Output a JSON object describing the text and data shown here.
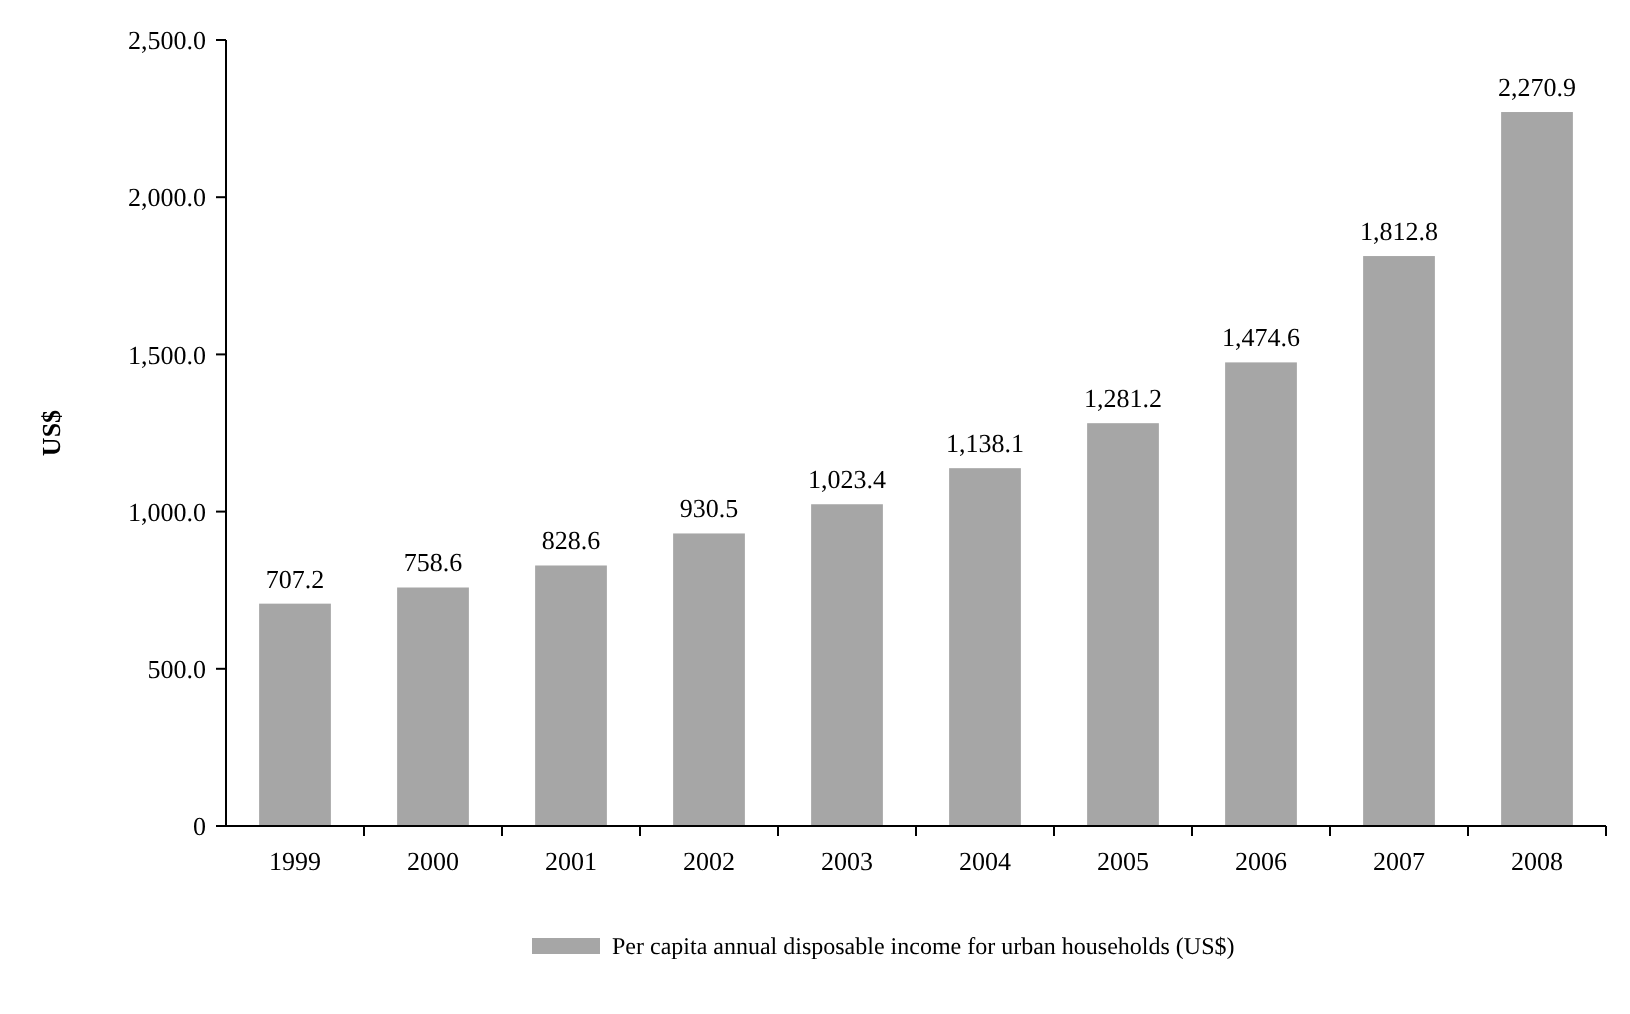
{
  "chart_data": {
    "type": "bar",
    "ylabel": "US$",
    "categories": [
      "1999",
      "2000",
      "2001",
      "2002",
      "2003",
      "2004",
      "2005",
      "2006",
      "2007",
      "2008"
    ],
    "series": [
      {
        "name": "Per capita annual disposable income for urban households (US$)",
        "color": "#a6a6a6",
        "values": [
          707.2,
          758.6,
          828.6,
          930.5,
          1023.4,
          1138.1,
          1281.2,
          1474.6,
          1812.8,
          2270.9
        ],
        "value_labels": [
          "707.2",
          "758.6",
          "828.6",
          "930.5",
          "1,023.4",
          "1,138.1",
          "1,281.2",
          "1,474.6",
          "1,812.8",
          "2,270.9"
        ]
      }
    ],
    "ylim": [
      0,
      2500
    ],
    "yticks": [
      0,
      {
        "value": 500,
        "label": "500.0"
      },
      {
        "value": 1000,
        "label": "1,000.0"
      },
      {
        "value": 1500,
        "label": "1,500.0"
      },
      {
        "value": 2000,
        "label": "2,000.0"
      },
      {
        "value": 2500,
        "label": "2,500.0"
      }
    ],
    "legend": "bottom"
  }
}
